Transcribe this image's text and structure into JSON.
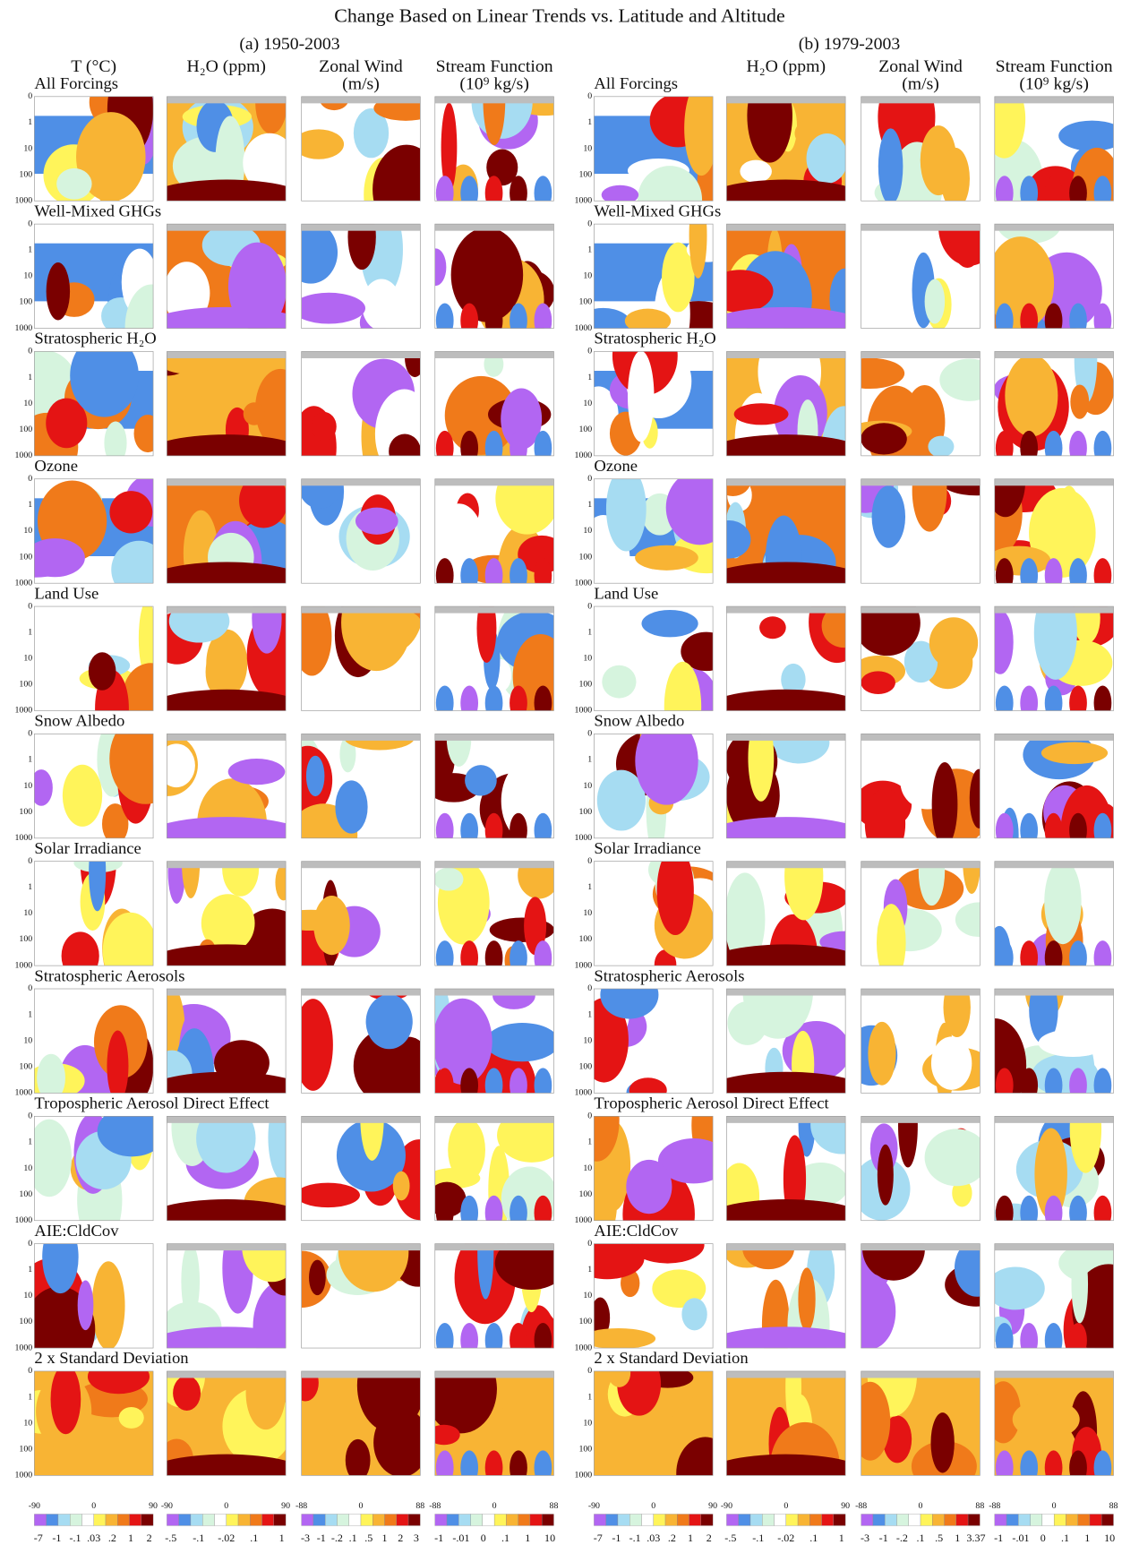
{
  "title": "Change Based on Linear Trends vs. Latitude and Altitude",
  "panels": [
    {
      "label": "(a)  1950-2003",
      "columns": [
        {
          "title": "T (°C)"
        },
        {
          "title": "H₂O (ppm)"
        },
        {
          "title": "Zonal Wind",
          "unit": "(m/s)"
        },
        {
          "title": "Stream Function",
          "unit": "(10⁹ kg/s)"
        }
      ],
      "colorbars": [
        [
          "-7",
          "-1",
          "-.1",
          ".03",
          ".2",
          "1",
          "2"
        ],
        [
          "-.5",
          "-.1",
          "-.02",
          ".1",
          "1"
        ],
        [
          "-3",
          "-1",
          "-.2",
          ".1",
          ".5",
          "1",
          "2",
          "3"
        ],
        [
          "-1",
          "-.01",
          "0",
          ".1",
          "1",
          "10"
        ]
      ]
    },
    {
      "label": "(b)  1979-2003",
      "columns": [
        {
          "title": ""
        },
        {
          "title": "H₂O (ppm)"
        },
        {
          "title": "Zonal Wind",
          "unit": "(m/s)"
        },
        {
          "title": "Stream Function",
          "unit": "(10⁹ kg/s)"
        }
      ],
      "colorbars": [
        [
          "-7",
          "-1",
          "-.1",
          ".03",
          ".2",
          "1",
          "2"
        ],
        [
          "-.5",
          "-.1",
          "-.02",
          ".1",
          "1"
        ],
        [
          "-3",
          "-1",
          "-.2",
          ".1",
          ".5",
          "1",
          "3.37"
        ],
        [
          "-1",
          "-.01",
          "0",
          ".1",
          "1",
          "10"
        ]
      ]
    }
  ],
  "rows": [
    "All Forcings",
    "Well-Mixed GHGs",
    "Stratospheric H₂O",
    "Ozone",
    "Land Use",
    "Snow Albedo",
    "Solar Irradiance",
    "Stratospheric Aerosols",
    "Tropospheric Aerosol Direct Effect",
    "AIE:CldCov",
    "2 x Standard Deviation"
  ],
  "axes": {
    "yticks": [
      "0",
      "1",
      "10",
      "100",
      "1000"
    ],
    "xticks_lat": [
      "-90",
      "0",
      "90"
    ],
    "xticks_wind": [
      "-88",
      "0",
      "88"
    ]
  }
}
